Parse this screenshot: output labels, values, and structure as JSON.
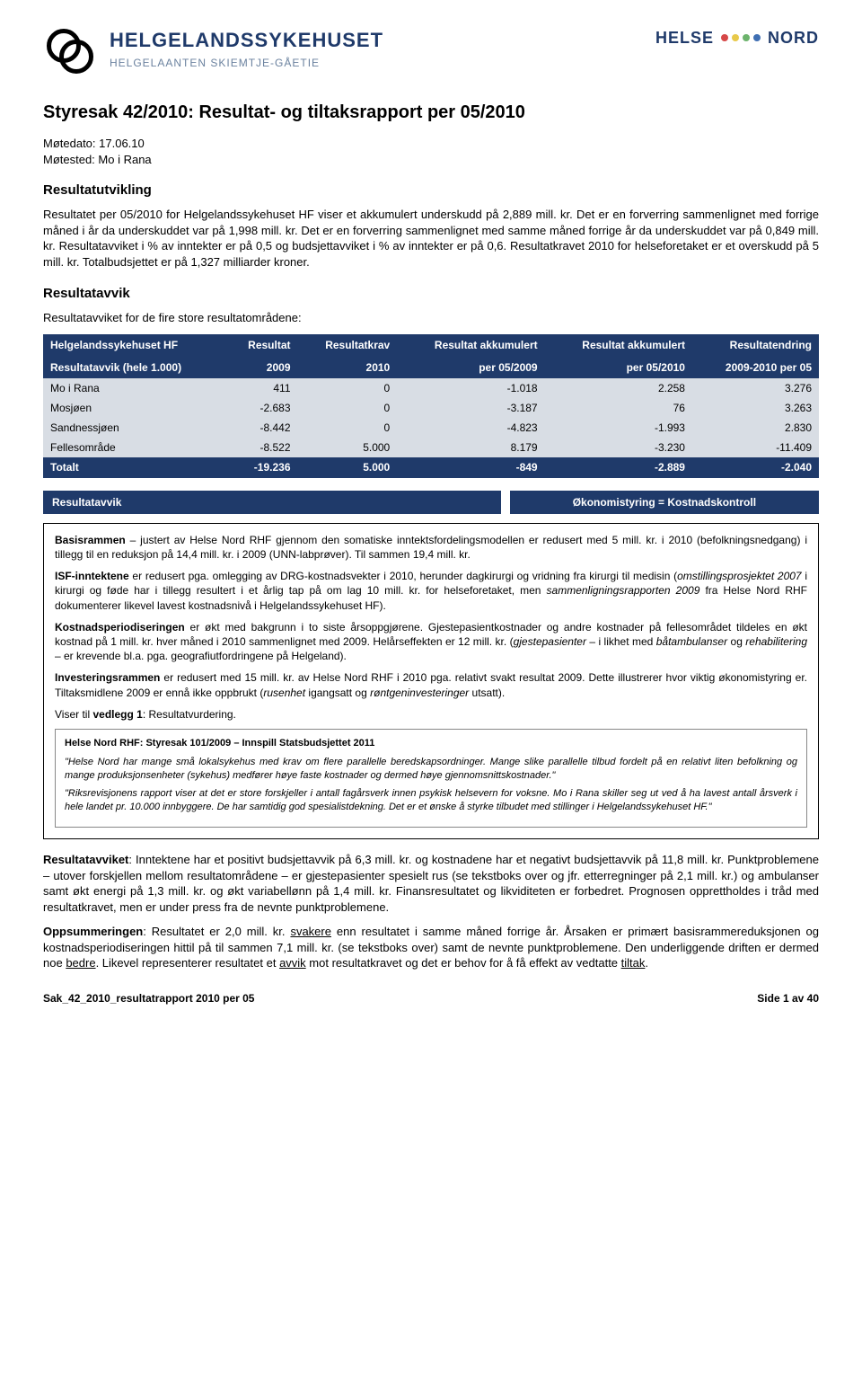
{
  "header": {
    "brand_main": "HELGELANDSSYKEHUSET",
    "brand_sub": "HELGELAANTEN SKIEMTJE-GÅETIE",
    "right_a": "HELSE",
    "right_b": "NORD"
  },
  "title": "Styresak 42/2010: Resultat- og tiltaksrapport per 05/2010",
  "meeting_date": "Møtedato: 17.06.10",
  "meeting_place": "Møtested: Mo i Rana",
  "section1_title": "Resultatutvikling",
  "section1_body": "Resultatet per 05/2010 for Helgelandssykehuset HF viser et akkumulert underskudd på 2,889 mill. kr. Det er en forverring sammenlignet med forrige måned i år da underskuddet var på 1,998 mill. kr. Det er en forverring sammenlignet med samme måned forrige år da underskuddet var på 0,849 mill. kr. Resultatavviket i % av inntekter er på 0,5 og budsjettavviket i % av inntekter er på 0,6. Resultatkravet 2010 for helseforetaket er et overskudd på 5 mill. kr. Totalbudsjettet er på 1,327 milliarder kroner.",
  "section2_title": "Resultatavvik",
  "section2_lead": "Resultatavviket for de fire store resultatområdene:",
  "table": {
    "header_row1": [
      "Helgelandssykehuset HF",
      "Resultat",
      "Resultatkrav",
      "Resultat akkumulert",
      "Resultat akkumulert",
      "Resultatendring"
    ],
    "header_row2": [
      "Resultatavvik (hele 1.000)",
      "2009",
      "2010",
      "per 05/2009",
      "per 05/2010",
      "2009-2010 per 05"
    ],
    "rows": [
      {
        "label": "Mo i Rana",
        "c1": "411",
        "c2": "0",
        "c3": "-1.018",
        "c4": "2.258",
        "c5": "3.276"
      },
      {
        "label": "Mosjøen",
        "c1": "-2.683",
        "c2": "0",
        "c3": "-3.187",
        "c4": "76",
        "c5": "3.263"
      },
      {
        "label": "Sandnessjøen",
        "c1": "-8.442",
        "c2": "0",
        "c3": "-4.823",
        "c4": "-1.993",
        "c5": "2.830"
      },
      {
        "label": "Fellesområde",
        "c1": "-8.522",
        "c2": "5.000",
        "c3": "8.179",
        "c4": "-3.230",
        "c5": "-11.409"
      }
    ],
    "total": {
      "label": "Totalt",
      "c1": "-19.236",
      "c2": "5.000",
      "c3": "-849",
      "c4": "-2.889",
      "c5": "-2.040"
    }
  },
  "banner_left": "Resultatavvik",
  "banner_right": "Økonomistyring = Kostnadskontroll",
  "box": {
    "p1a": "Basisrammen",
    "p1b": " – justert av Helse Nord RHF gjennom den somatiske inntektsfordelingsmodellen er redusert med 5 mill. kr. i 2010 (befolkningsnedgang) i tillegg til en reduksjon på 14,4 mill. kr. i 2009 (UNN-labprøver). Til sammen 19,4 mill. kr.",
    "p2a": "ISF-inntektene",
    "p2b": " er redusert pga. omlegging av DRG-kostnadsvekter i 2010, herunder dagkirurgi og vridning fra kirurgi til medisin (",
    "p2c": "omstillingsprosjektet 2007",
    "p2d": " i kirurgi og føde har i tillegg resultert i et årlig tap på om lag 10 mill. kr. for helseforetaket, men ",
    "p2e": "sammenligningsrapporten 2009",
    "p2f": " fra Helse Nord RHF dokumenterer likevel lavest kostnadsnivå i Helgelandssykehuset HF).",
    "p3a": "Kostnadsperiodiseringen",
    "p3b": " er økt med bakgrunn i to siste årsoppgjørene. Gjestepasientkostnader og andre kostnader på fellesområdet tildeles en økt kostnad på 1 mill. kr. hver måned i 2010 sammenlignet med 2009. Helårseffekten er 12 mill. kr. (",
    "p3c": "gjestepasienter",
    "p3d": " – i likhet med ",
    "p3e": "båtambulanser",
    "p3f": " og ",
    "p3g": "rehabilitering",
    "p3h": " – er krevende bl.a. pga. geografiutfordringene på Helgeland).",
    "p4a": "Investeringsrammen",
    "p4b": " er redusert med 15 mill. kr. av Helse Nord RHF i 2010 pga. relativt svakt resultat 2009. Dette illustrerer hvor viktig økonomistyring er. Tiltaksmidlene 2009 er ennå ikke oppbrukt (",
    "p4c": "rusenhet",
    "p4d": " igangsatt og ",
    "p4e": "røntgeninvesteringer",
    "p4f": " utsatt).",
    "p5a": "Viser til ",
    "p5b": "vedlegg 1",
    "p5c": ": Resultatvurdering.",
    "inner_title": "Helse Nord RHF: Styresak 101/2009 – Innspill Statsbudsjettet 2011",
    "inner_q1": "\"Helse Nord har mange små lokalsykehus med krav om flere parallelle beredskapsordninger. Mange slike parallelle tilbud fordelt på en relativt liten befolkning og mange produksjonsenheter (sykehus) medfører høye faste kostnader og dermed høye gjennomsnittskostnader.\"",
    "inner_q2": "\"Riksrevisjonens rapport viser at det er store forskjeller i antall fagårsverk innen psykisk helsevern for voksne. Mo i Rana skiller seg ut ved å ha lavest antall årsverk i hele landet pr. 10.000 innbyggere. De har samtidig god spesialistdekning. Det er et ønske å styrke tilbudet med stillinger i Helgelandssykehuset HF.\""
  },
  "para3_a": "Resultatavviket",
  "para3_b": ": Inntektene har et positivt budsjettavvik på 6,3 mill. kr. og kostnadene har et negativt budsjettavvik på 11,8 mill. kr. Punktproblemene – utover forskjellen mellom resultatområdene – er gjestepasienter spesielt rus (se tekstboks over og jfr. etterregninger på 2,1 mill. kr.) og ambulanser samt økt energi på 1,3 mill. kr. og økt variabellønn på 1,4 mill. kr. Finansresultatet og likviditeten er forbedret. Prognosen opprettholdes i tråd med resultatkravet, men er under press fra de nevnte punktproblemene.",
  "para4_a": "Oppsummeringen",
  "para4_b": ": Resultatet er 2,0 mill. kr. ",
  "para4_c": "svakere",
  "para4_d": " enn resultatet i samme måned forrige år. Årsaken er primært basisrammereduksjonen og kostnadsperiodiseringen hittil på til sammen 7,1 mill. kr. (se tekstboks over) samt de nevnte punktproblemene. Den underliggende driften er dermed noe ",
  "para4_e": "bedre",
  "para4_f": ". Likevel representerer resultatet et ",
  "para4_g": "avvik",
  "para4_h": " mot resultatkravet og det er behov for å få effekt av vedtatte ",
  "para4_i": "tiltak",
  "para4_j": ".",
  "footer_left": "Sak_42_2010_resultatrapport 2010 per 05",
  "footer_right": "Side 1 av 40"
}
